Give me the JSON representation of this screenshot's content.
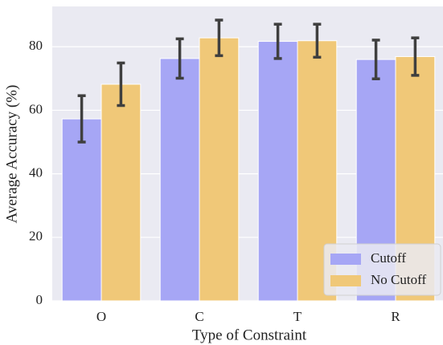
{
  "chart_data": {
    "type": "bar",
    "xlabel": "Type of Constraint",
    "ylabel": "Average Accuracy (%)",
    "categories": [
      "O",
      "C",
      "T",
      "R"
    ],
    "series": [
      {
        "name": "Cutoff",
        "color": "#a6a6f5",
        "values": [
          57.3,
          76.3,
          81.7,
          76.0
        ],
        "errors": [
          7.3,
          6.2,
          5.4,
          6.1
        ]
      },
      {
        "name": "No Cutoff",
        "color": "#f0c878",
        "values": [
          68.2,
          82.8,
          81.9,
          76.9
        ],
        "errors": [
          6.7,
          5.6,
          5.2,
          5.9
        ]
      }
    ],
    "ylim": [
      0,
      92.7
    ],
    "yticks": [
      0,
      20,
      40,
      60,
      80
    ],
    "grid": true,
    "legend": "lower right"
  }
}
